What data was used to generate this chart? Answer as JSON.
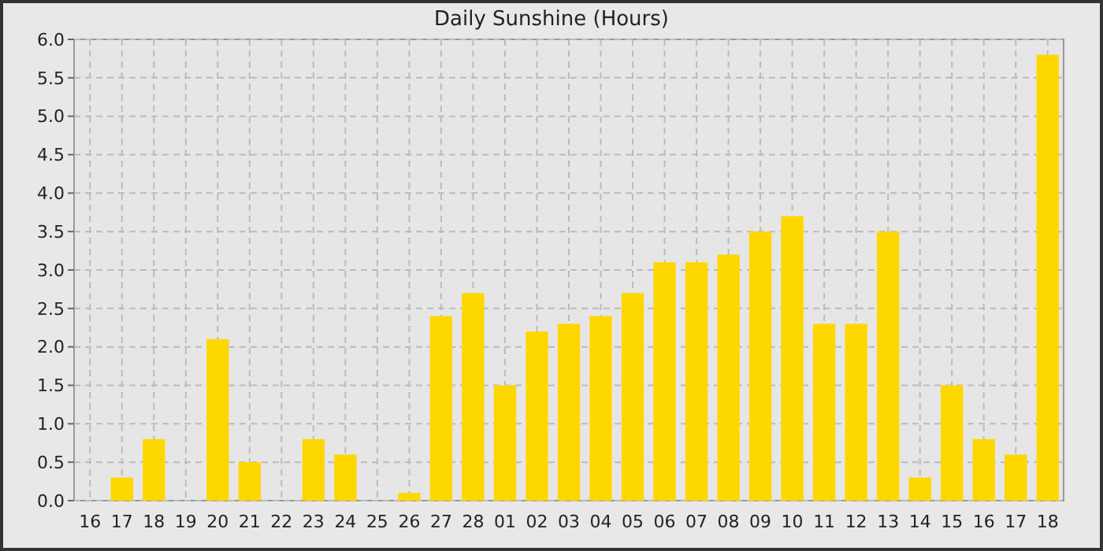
{
  "chart_data": {
    "type": "bar",
    "title": "Daily Sunshine (Hours)",
    "categories": [
      "16",
      "17",
      "18",
      "19",
      "20",
      "21",
      "22",
      "23",
      "24",
      "25",
      "26",
      "27",
      "28",
      "01",
      "02",
      "03",
      "04",
      "05",
      "06",
      "07",
      "08",
      "09",
      "10",
      "11",
      "12",
      "13",
      "14",
      "15",
      "16",
      "17",
      "18"
    ],
    "values": [
      0,
      0.3,
      0.8,
      0,
      2.1,
      0.5,
      0,
      0.8,
      0.6,
      0,
      0.1,
      2.4,
      2.7,
      1.5,
      2.2,
      2.3,
      2.4,
      2.7,
      3.1,
      3.1,
      3.2,
      3.5,
      3.7,
      2.3,
      2.3,
      3.5,
      0.3,
      1.5,
      0.8,
      0.6,
      5.8
    ],
    "color": "#ffd700",
    "ylim": [
      0,
      6
    ],
    "yticks": [
      {
        "value": 0,
        "label": "0.0"
      },
      {
        "value": 0.5,
        "label": "0.5"
      },
      {
        "value": 1,
        "label": "1.0"
      },
      {
        "value": 1.5,
        "label": "1.5"
      },
      {
        "value": 2,
        "label": "2.0"
      },
      {
        "value": 2.5,
        "label": "2.5"
      },
      {
        "value": 3,
        "label": "3.0"
      },
      {
        "value": 3.5,
        "label": "3.5"
      },
      {
        "value": 4,
        "label": "4.0"
      },
      {
        "value": 4.5,
        "label": "4.5"
      },
      {
        "value": 5,
        "label": "5.0"
      },
      {
        "value": 5.5,
        "label": "5.5"
      },
      {
        "value": 6,
        "label": "6.0"
      }
    ],
    "grid": true
  }
}
